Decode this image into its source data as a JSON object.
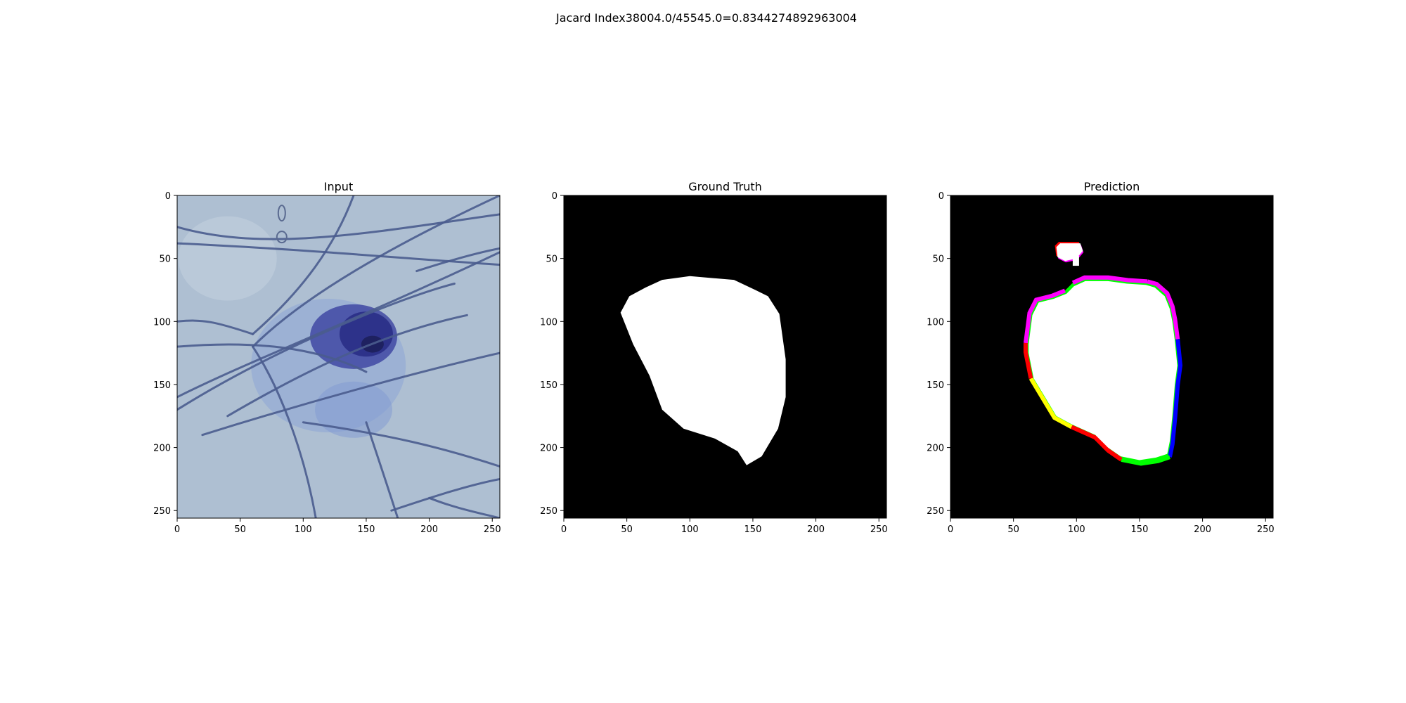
{
  "figure_title": "Jacard Index38004.0/45545.0=0.8344274892963004",
  "chart_data": [
    {
      "type": "image",
      "title": "Input",
      "content": "dermoscopy image: dark blue pigmented lesion on pale blue skin crossed by dark hairs",
      "xlim": [
        0,
        256
      ],
      "ylim": [
        256,
        0
      ],
      "xticks": [
        0,
        50,
        100,
        150,
        200,
        250
      ],
      "yticks": [
        0,
        50,
        100,
        150,
        200,
        250
      ],
      "colors": {
        "skin": "#aebfd2",
        "lesion": "#2a2f86",
        "hair": "#4a5c8e"
      }
    },
    {
      "type": "image",
      "title": "Ground Truth",
      "content": "binary mask: white lesion region on black background",
      "xlim": [
        0,
        256
      ],
      "ylim": [
        256,
        0
      ],
      "xticks": [
        0,
        50,
        100,
        150,
        200,
        250
      ],
      "yticks": [
        0,
        50,
        100,
        150,
        200,
        250
      ],
      "mask_polygon": [
        [
          45,
          93
        ],
        [
          52,
          80
        ],
        [
          65,
          73
        ],
        [
          78,
          67
        ],
        [
          100,
          64
        ],
        [
          135,
          67
        ],
        [
          152,
          75
        ],
        [
          162,
          80
        ],
        [
          171,
          94
        ],
        [
          176,
          130
        ],
        [
          176,
          160
        ],
        [
          170,
          185
        ],
        [
          157,
          207
        ],
        [
          145,
          214
        ],
        [
          138,
          203
        ],
        [
          120,
          193
        ],
        [
          95,
          185
        ],
        [
          78,
          170
        ],
        [
          68,
          143
        ],
        [
          55,
          118
        ],
        [
          45,
          93
        ]
      ],
      "colors": {
        "background": "#000000",
        "mask": "#ffffff"
      }
    },
    {
      "type": "image",
      "title": "Prediction",
      "content": "binary prediction mask: white region with colored boundary pixels on black background",
      "xlim": [
        0,
        256
      ],
      "ylim": [
        256,
        0
      ],
      "xticks": [
        0,
        50,
        100,
        150,
        200,
        250
      ],
      "yticks": [
        0,
        50,
        100,
        150,
        200,
        250
      ],
      "mask_polygon": [
        [
          62,
          118
        ],
        [
          65,
          95
        ],
        [
          70,
          85
        ],
        [
          82,
          82
        ],
        [
          92,
          78
        ],
        [
          98,
          72
        ],
        [
          107,
          68
        ],
        [
          125,
          68
        ],
        [
          140,
          70
        ],
        [
          155,
          71
        ],
        [
          162,
          73
        ],
        [
          170,
          80
        ],
        [
          174,
          90
        ],
        [
          176,
          100
        ],
        [
          178,
          115
        ],
        [
          180,
          135
        ],
        [
          178,
          150
        ],
        [
          176,
          175
        ],
        [
          174,
          195
        ],
        [
          172,
          205
        ],
        [
          163,
          208
        ],
        [
          150,
          210
        ],
        [
          135,
          207
        ],
        [
          125,
          200
        ],
        [
          115,
          190
        ],
        [
          97,
          182
        ],
        [
          84,
          175
        ],
        [
          75,
          160
        ],
        [
          66,
          145
        ],
        [
          62,
          125
        ],
        [
          62,
          118
        ]
      ],
      "blob_polygon": [
        [
          84,
          41
        ],
        [
          87,
          38
        ],
        [
          103,
          38
        ],
        [
          105,
          44
        ],
        [
          100,
          50
        ],
        [
          91,
          52
        ],
        [
          85,
          49
        ]
      ],
      "colors": {
        "background": "#000000",
        "mask": "#ffffff",
        "edge_red": "#ff0000",
        "edge_yellow": "#ffff00",
        "edge_green": "#00ff00",
        "edge_magenta": "#ff00ff",
        "edge_blue": "#0000ff"
      }
    }
  ]
}
